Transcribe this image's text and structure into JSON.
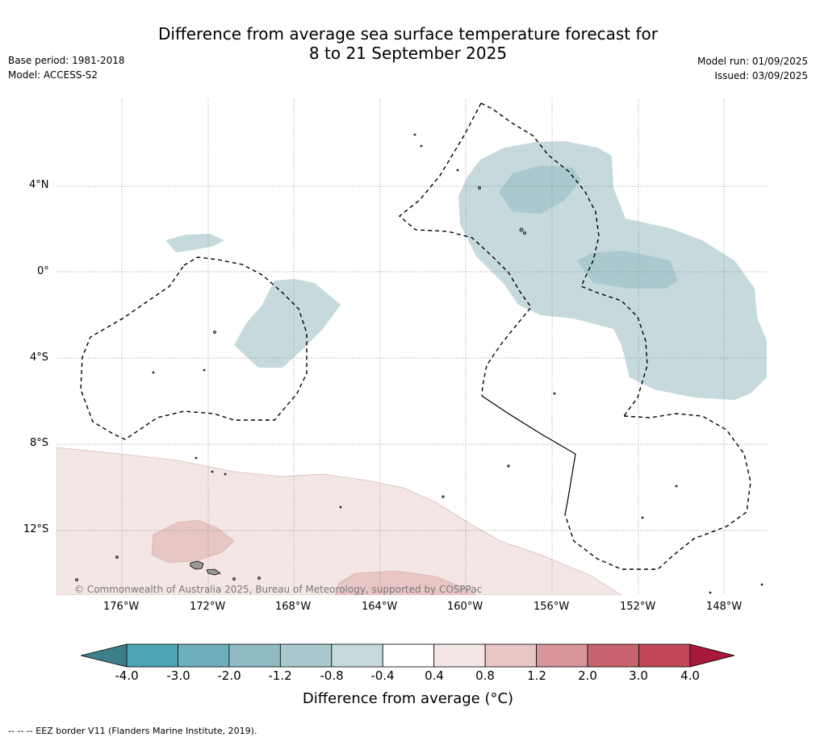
{
  "title_line1": "Difference from average sea surface temperature forecast for",
  "title_line2": "8 to 21 September 2025",
  "base_period": "Base period: 1981-2018",
  "model": "Model: ACCESS-S2",
  "model_run": "Model run: 01/09/2025",
  "issued": "Issued: 03/09/2025",
  "map": {
    "lon_labels": [
      "176°W",
      "172°W",
      "168°W",
      "164°W",
      "160°W",
      "156°W",
      "152°W",
      "148°W"
    ],
    "lat_labels": [
      "4°N",
      "0°",
      "4°S",
      "8°S",
      "12°S"
    ],
    "copyright": "© Commonwealth of Australia 2025, Bureau of Meteorology, supported by COSPPac"
  },
  "colorbar": {
    "title": "Difference from average (°C)",
    "ticks": [
      "-4.0",
      "-3.0",
      "-2.0",
      "-1.2",
      "-0.8",
      "-0.4",
      "0.4",
      "0.8",
      "1.2",
      "2.0",
      "3.0",
      "4.0"
    ],
    "colors": [
      "#3b7f8a",
      "#4ba5b4",
      "#6eafbc",
      "#8fbcc3",
      "#aac9ce",
      "#c6dadd",
      "#ffffff",
      "#f4e6e5",
      "#e8c6c3",
      "#d8959a",
      "#c8646e",
      "#c04656",
      "#a8183a"
    ]
  },
  "footer": "--  --  -- EEZ border V11 (Flanders Marine Institute, 2019)."
}
